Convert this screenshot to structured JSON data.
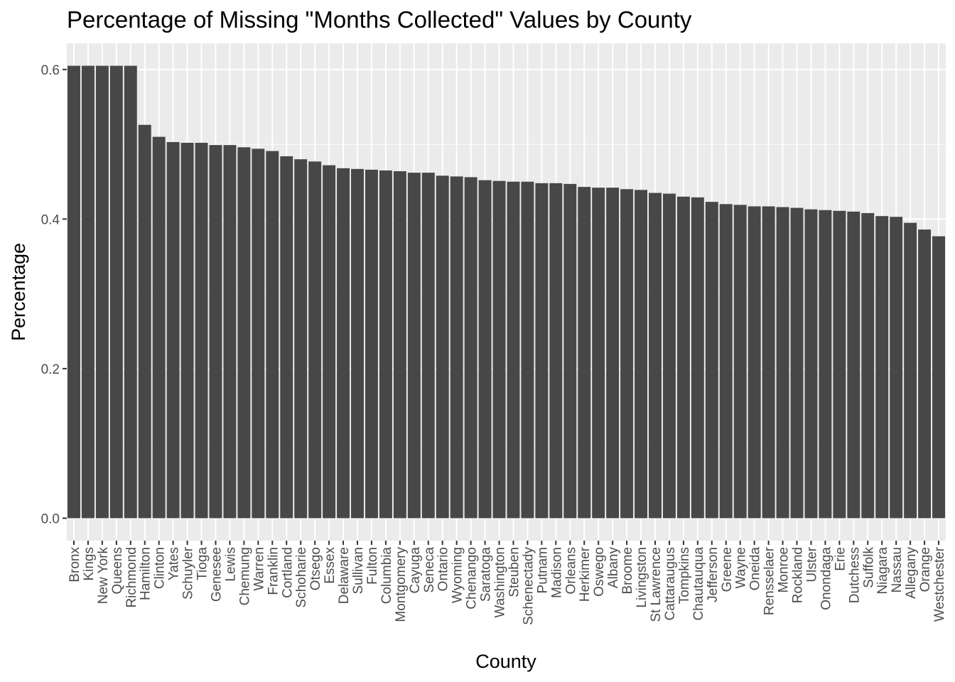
{
  "chart_data": {
    "type": "bar",
    "title": "Percentage of Missing \"Months Collected\" Values by County",
    "xlabel": "County",
    "ylabel": "Percentage",
    "ylim": [
      -0.03,
      0.635
    ],
    "yticks": [
      "0.0",
      "0.2",
      "0.4",
      "0.6"
    ],
    "grid": true,
    "colors": {
      "panel": "#ebebeb",
      "grid": "#ffffff",
      "bar": "#474747",
      "tick_text": "#4d4d4d",
      "tick_mark": "#333333"
    },
    "categories": [
      "Bronx",
      "Kings",
      "New York",
      "Queens",
      "Richmond",
      "Hamilton",
      "Clinton",
      "Yates",
      "Schuyler",
      "Tioga",
      "Genesee",
      "Lewis",
      "Chemung",
      "Warren",
      "Franklin",
      "Cortland",
      "Schoharie",
      "Otsego",
      "Essex",
      "Delaware",
      "Sullivan",
      "Fulton",
      "Columbia",
      "Montgomery",
      "Cayuga",
      "Seneca",
      "Ontario",
      "Wyoming",
      "Chenango",
      "Saratoga",
      "Washington",
      "Steuben",
      "Schenectady",
      "Putnam",
      "Madison",
      "Orleans",
      "Herkimer",
      "Oswego",
      "Albany",
      "Broome",
      "Livingston",
      "St Lawrence",
      "Cattaraugus",
      "Tompkins",
      "Chautauqua",
      "Jefferson",
      "Greene",
      "Wayne",
      "Oneida",
      "Rensselaer",
      "Monroe",
      "Rockland",
      "Ulster",
      "Onondaga",
      "Erie",
      "Dutchess",
      "Suffolk",
      "Niagara",
      "Nassau",
      "Allegany",
      "Orange",
      "Westchester"
    ],
    "values": [
      0.605,
      0.605,
      0.605,
      0.605,
      0.605,
      0.526,
      0.51,
      0.503,
      0.502,
      0.502,
      0.499,
      0.499,
      0.496,
      0.494,
      0.491,
      0.484,
      0.48,
      0.477,
      0.472,
      0.468,
      0.467,
      0.466,
      0.465,
      0.464,
      0.462,
      0.462,
      0.458,
      0.457,
      0.456,
      0.452,
      0.451,
      0.45,
      0.45,
      0.448,
      0.448,
      0.447,
      0.443,
      0.442,
      0.442,
      0.44,
      0.439,
      0.435,
      0.434,
      0.43,
      0.429,
      0.423,
      0.42,
      0.419,
      0.417,
      0.417,
      0.416,
      0.415,
      0.413,
      0.412,
      0.411,
      0.41,
      0.408,
      0.404,
      0.403,
      0.395,
      0.386,
      0.377
    ]
  }
}
